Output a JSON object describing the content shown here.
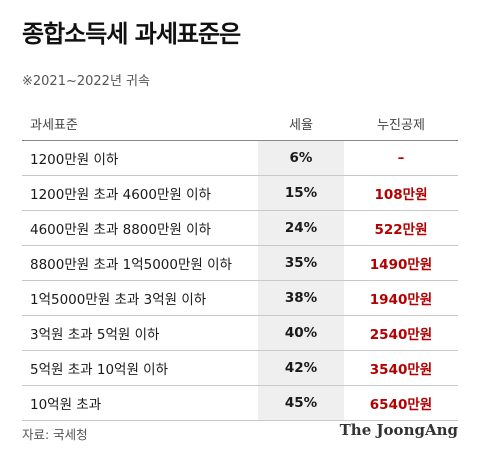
{
  "title": "종합소득세 과세표준은",
  "subtitle": "※2021~2022년 귀속",
  "table": {
    "headers": [
      "과세표준",
      "세율",
      "누진공제"
    ],
    "rows": [
      {
        "bracket": "1200만원 이하",
        "rate": "6%",
        "deduction": "–"
      },
      {
        "bracket": "1200만원 초과 4600만원 이하",
        "rate": "15%",
        "deduction": "108만원"
      },
      {
        "bracket": "4600만원 초과 8800만원 이하",
        "rate": "24%",
        "deduction": "522만원"
      },
      {
        "bracket": "8800만원 초과 1억5000만원 이하",
        "rate": "35%",
        "deduction": "1490만원"
      },
      {
        "bracket": "1억5000만원 초과 3억원 이하",
        "rate": "38%",
        "deduction": "1940만원"
      },
      {
        "bracket": "3억원 초과 5억원 이하",
        "rate": "40%",
        "deduction": "2540만원"
      },
      {
        "bracket": "5억원 초과 10억원 이하",
        "rate": "42%",
        "deduction": "3540만원"
      },
      {
        "bracket": "10억원 초과",
        "rate": "45%",
        "deduction": "6540만원"
      }
    ]
  },
  "source": "자료: 국세청",
  "brand": "The JoongAng"
}
